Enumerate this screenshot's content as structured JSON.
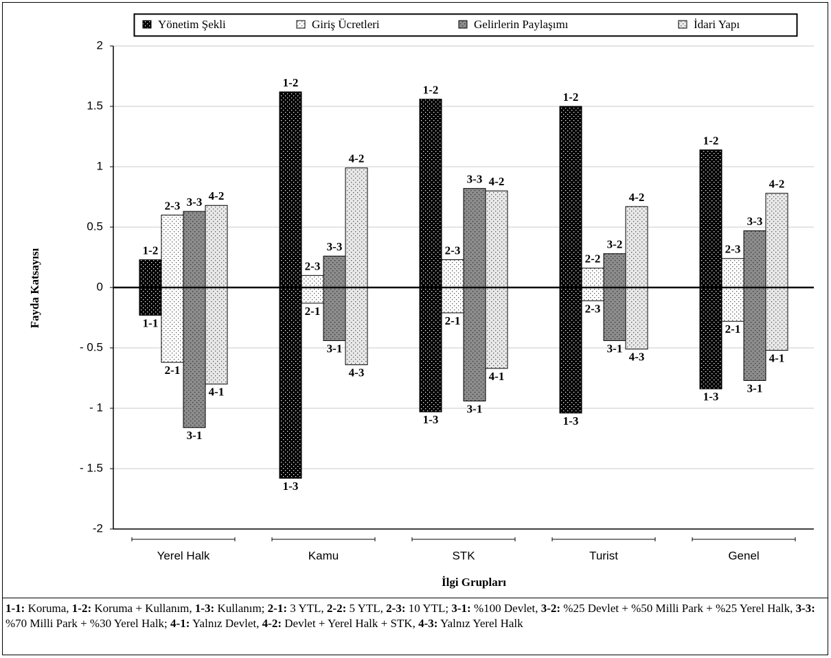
{
  "chart_data": {
    "type": "bar",
    "categories": [
      "Yerel Halk",
      "Kamu",
      "STK",
      "Turist",
      "Genel"
    ],
    "xlabel": "İlgi Grupları",
    "ylabel": "Fayda Katsayısı",
    "ylim": [
      -2,
      2
    ],
    "yticks": [
      {
        "value": -2,
        "label": "-2"
      },
      {
        "value": -1.5,
        "label": "- 1.5"
      },
      {
        "value": -1,
        "label": "- 1"
      },
      {
        "value": -0.5,
        "label": "- 0.5"
      },
      0,
      0.5,
      1,
      1.5,
      2
    ],
    "grid": true,
    "legend": "top",
    "series": [
      {
        "name": "Yönetim Şekli",
        "color": "#000000",
        "values": [
          0.23,
          1.62,
          1.56,
          1.5,
          1.14
        ],
        "low_values": [
          -0.23,
          -1.58,
          -1.03,
          -1.04,
          -0.84
        ],
        "top_labels": [
          "1-2",
          "1-2",
          "1-2",
          "1-2",
          "1-2"
        ],
        "bottom_labels": [
          "1-1",
          "1-3",
          "1-3",
          "1-3",
          "1-3"
        ]
      },
      {
        "name": "Giriş Ücretleri",
        "color": "#ffffff",
        "values": [
          0.6,
          0.1,
          0.23,
          0.16,
          0.24
        ],
        "low_values": [
          -0.62,
          -0.13,
          -0.21,
          -0.11,
          -0.28
        ],
        "top_labels": [
          "2-3",
          "2-3",
          "2-3",
          "2-2",
          "2-3"
        ],
        "bottom_labels": [
          "2-1",
          "2-1",
          "2-1",
          "2-3",
          "2-1"
        ]
      },
      {
        "name": "Gelirlerin Paylaşımı",
        "color": "#8c8c8c",
        "values": [
          0.63,
          0.26,
          0.82,
          0.28,
          0.47
        ],
        "low_values": [
          -1.16,
          -0.44,
          -0.94,
          -0.44,
          -0.77
        ],
        "top_labels": [
          "3-3",
          "3-3",
          "3-3",
          "3-2",
          "3-3"
        ],
        "bottom_labels": [
          "3-1",
          "3-1",
          "3-1",
          "3-1",
          "3-1"
        ]
      },
      {
        "name": "İdari Yapı",
        "color": "#e8e8e8",
        "values": [
          0.68,
          0.99,
          0.8,
          0.67,
          0.78
        ],
        "low_values": [
          -0.8,
          -0.64,
          -0.67,
          -0.51,
          -0.52
        ],
        "top_labels": [
          "4-2",
          "4-2",
          "4-2",
          "4-2",
          "4-2"
        ],
        "bottom_labels": [
          "4-1",
          "4-3",
          "4-1",
          "4-3",
          "4-1"
        ]
      }
    ]
  },
  "footnote": [
    {
      "code": "1-1:",
      "text": "Koruma,"
    },
    {
      "code": "1-2:",
      "text": "Koruma + Kullanım,"
    },
    {
      "code": "1-3:",
      "text": "Kullanım;"
    },
    {
      "code": "2-1:",
      "text": "3 YTL,"
    },
    {
      "code": "2-2:",
      "text": "5 YTL,"
    },
    {
      "code": "2-3:",
      "text": "10 YTL;"
    },
    {
      "code": "3-1:",
      "text": "%100 Devlet,"
    },
    {
      "code": "3-2:",
      "text": "%25 Devlet + %50 Milli Park + %25 Yerel Halk,"
    },
    {
      "code": "3-3:",
      "text": "%70 Milli Park + %30 Yerel Halk;"
    },
    {
      "code": "4-1:",
      "text": "Yalnız Devlet,"
    },
    {
      "code": "4-2:",
      "text": "Devlet + Yerel Halk + STK,"
    },
    {
      "code": "4-3:",
      "text": "Yalnız Yerel Halk"
    }
  ]
}
